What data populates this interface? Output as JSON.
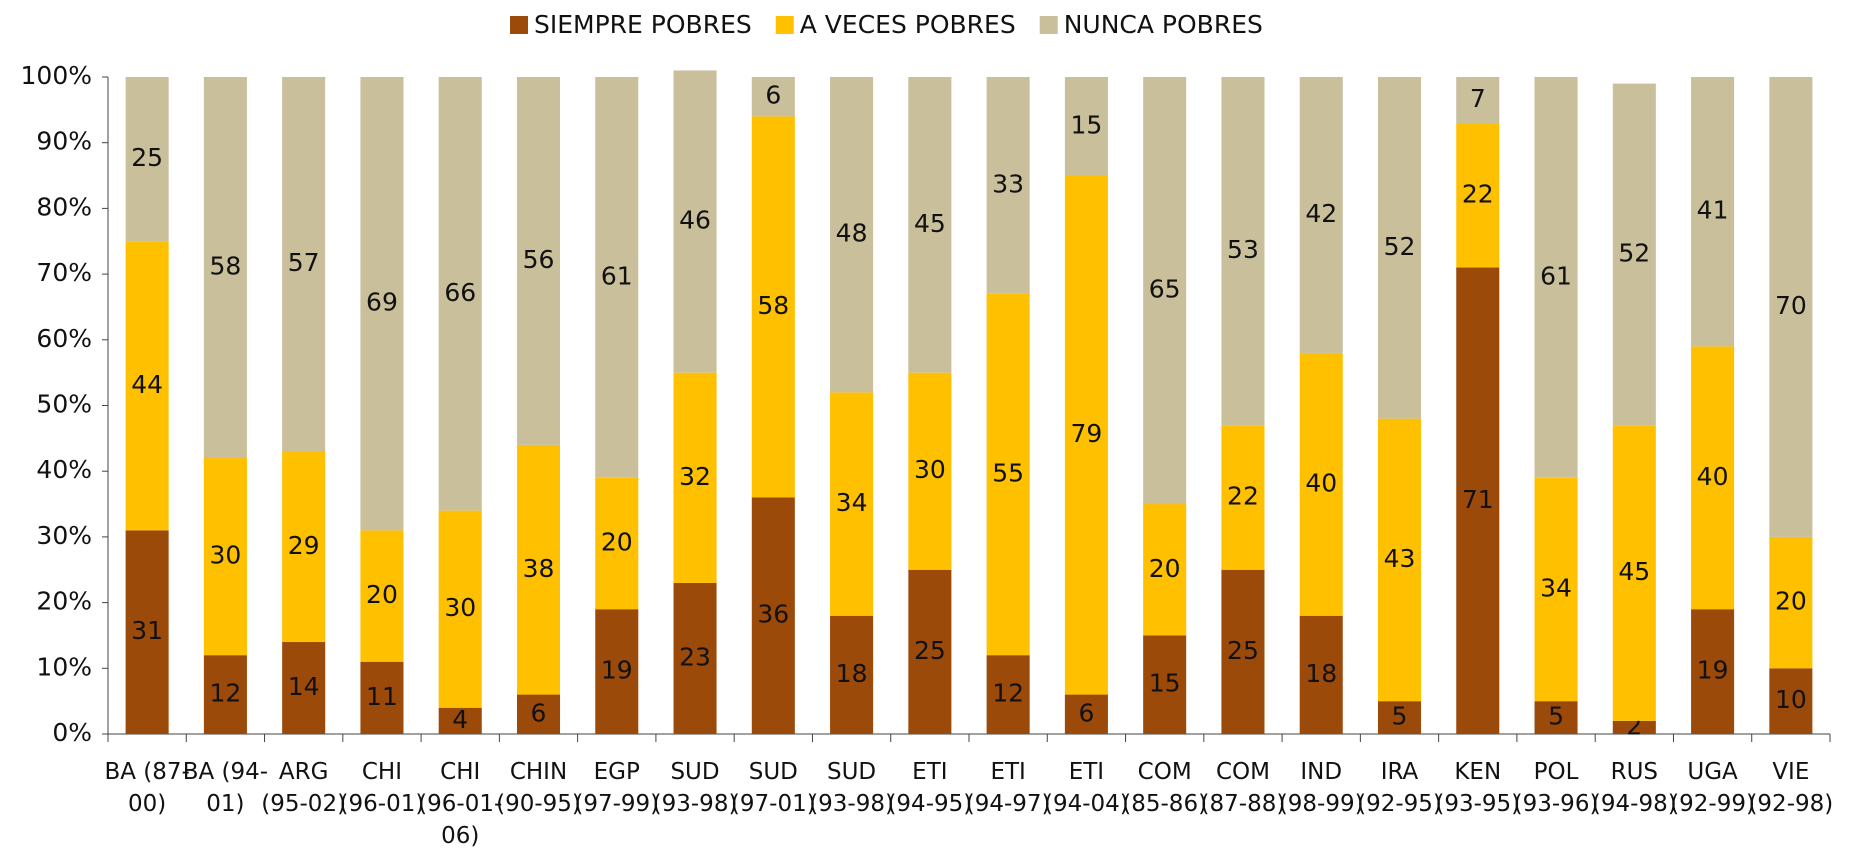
{
  "chart_data": {
    "type": "stacked_bar_percent",
    "categories": [
      "BA (87-00)",
      "BA (94-01)",
      "ARG (95-02)",
      "CHI (96-01)",
      "CHI (96-01-06)",
      "CHIN (90-95)",
      "EGP (97-99)",
      "SUD (93-98)",
      "SUD (97-01)",
      "SUD (93-98)",
      "ETI (94-95)",
      "ETI (94-97)",
      "ETI (94-04)",
      "COM (85-86)",
      "COM (87-88)",
      "IND (98-99)",
      "IRA (92-95)",
      "KEN (93-95)",
      "POL (93-96)",
      "RUS (94-98)",
      "UGA (92-99)",
      "VIE (92-98)"
    ],
    "series": [
      {
        "name": "SIEMPRE POBRES",
        "color": "#9c4a0a",
        "values": [
          31,
          12,
          14,
          11,
          4,
          6,
          19,
          23,
          36,
          18,
          25,
          12,
          6,
          15,
          25,
          18,
          5,
          71,
          5,
          2,
          19,
          10
        ]
      },
      {
        "name": "A VECES POBRES",
        "color": "#ffc000",
        "values": [
          44,
          30,
          29,
          20,
          30,
          38,
          20,
          32,
          58,
          34,
          30,
          55,
          79,
          20,
          22,
          40,
          43,
          22,
          34,
          45,
          40,
          20
        ]
      },
      {
        "name": "NUNCA POBRES",
        "color": "#c9bf9b",
        "values": [
          25,
          58,
          57,
          69,
          66,
          56,
          61,
          46,
          6,
          48,
          45,
          33,
          15,
          65,
          53,
          42,
          52,
          7,
          61,
          52,
          41,
          70
        ]
      }
    ],
    "ylim": [
      0,
      100
    ],
    "yticks": [
      {
        "value": 0,
        "label": "0%"
      },
      {
        "value": 10,
        "label": "10%"
      },
      {
        "value": 20,
        "label": "20%"
      },
      {
        "value": 30,
        "label": "30%"
      },
      {
        "value": 40,
        "label": "40%"
      },
      {
        "value": 50,
        "label": "50%"
      },
      {
        "value": 60,
        "label": "60%"
      },
      {
        "value": 70,
        "label": "70%"
      },
      {
        "value": 80,
        "label": "80%"
      },
      {
        "value": 90,
        "label": "90%"
      },
      {
        "value": 100,
        "label": "100%"
      }
    ],
    "legend": "top"
  }
}
